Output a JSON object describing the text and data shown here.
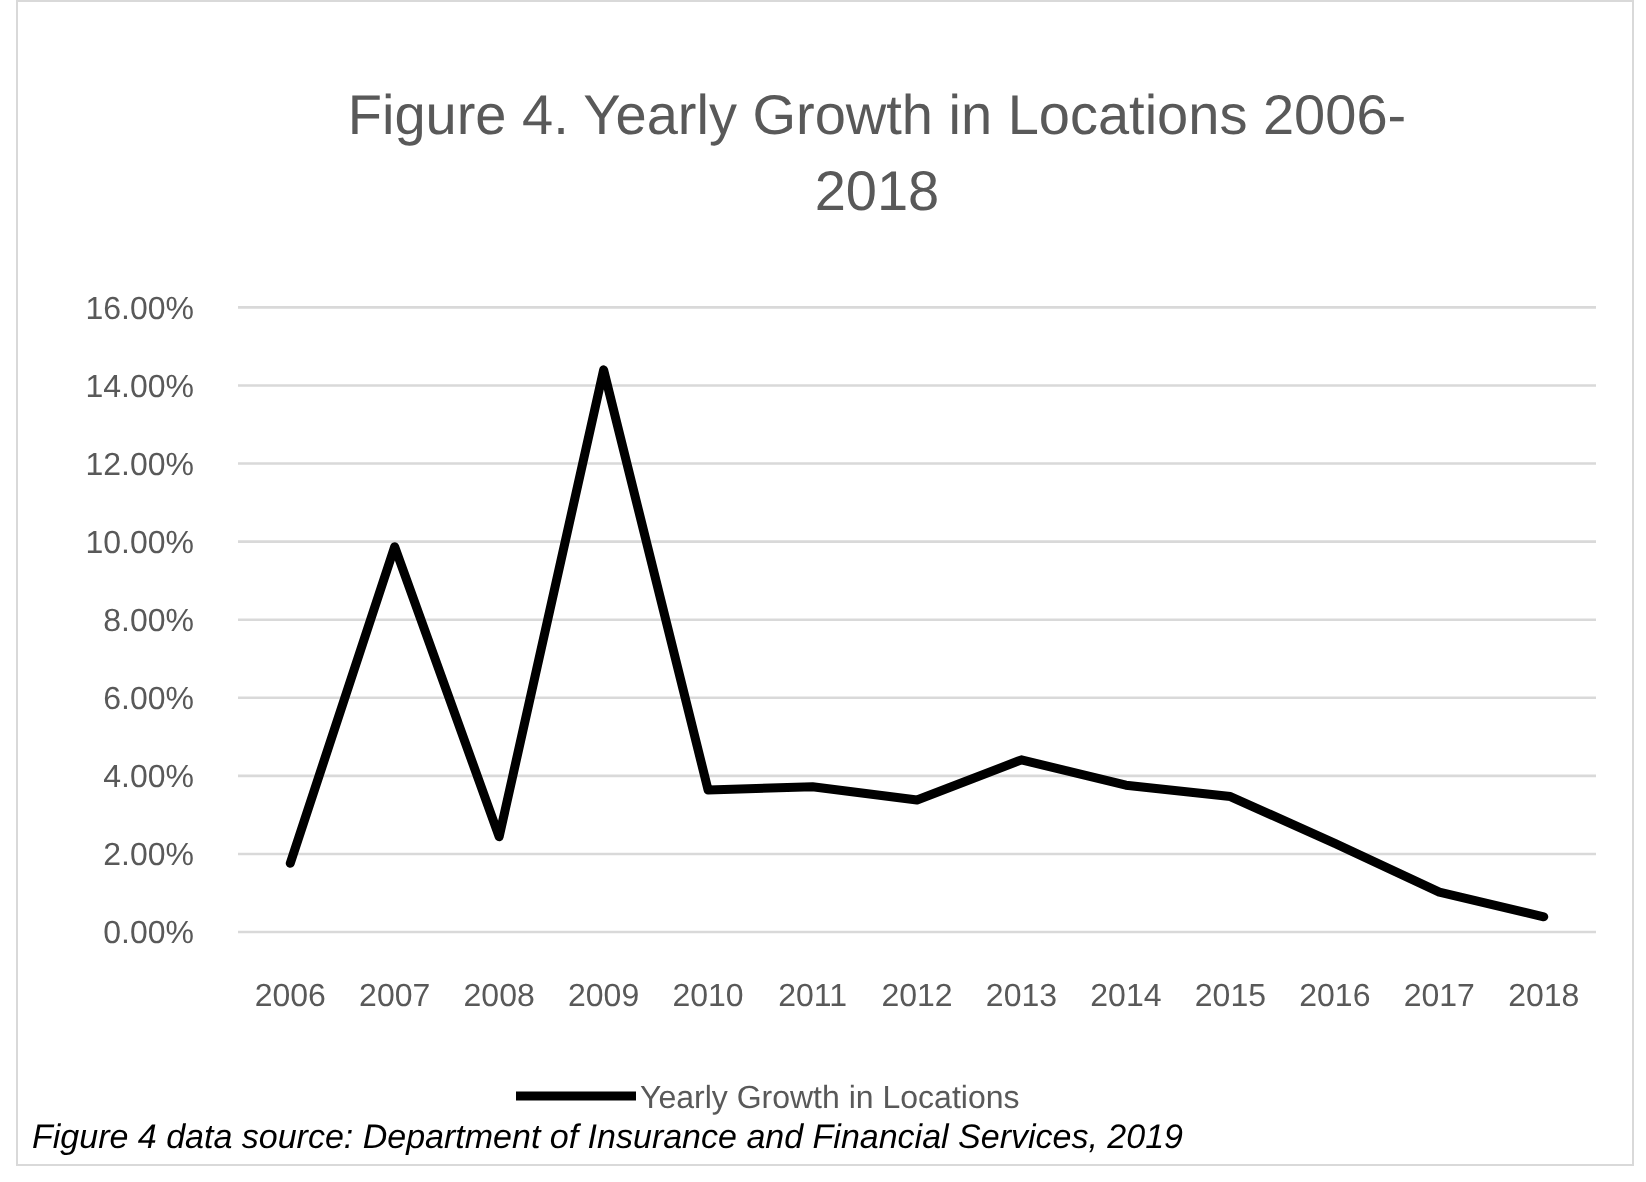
{
  "chart_data": {
    "type": "line",
    "title": "Figure 4. Yearly Growth in Locations 2006-2018",
    "categories": [
      "2006",
      "2007",
      "2008",
      "2009",
      "2010",
      "2011",
      "2012",
      "2013",
      "2014",
      "2015",
      "2016",
      "2017",
      "2018"
    ],
    "series": [
      {
        "name": "Yearly Growth in Locations",
        "color": "#000000",
        "values": [
          1.76,
          9.87,
          2.44,
          14.4,
          3.64,
          3.72,
          3.38,
          4.41,
          3.76,
          3.47,
          2.27,
          1.02,
          0.39
        ]
      }
    ],
    "ylim": [
      0,
      16
    ],
    "yticks": [
      {
        "value": 0,
        "label": "0.00%"
      },
      {
        "value": 2,
        "label": "2.00%"
      },
      {
        "value": 4,
        "label": "4.00%"
      },
      {
        "value": 6,
        "label": "6.00%"
      },
      {
        "value": 8,
        "label": "8.00%"
      },
      {
        "value": 10,
        "label": "10.00%"
      },
      {
        "value": 12,
        "label": "12.00%"
      },
      {
        "value": 14,
        "label": "14.00%"
      },
      {
        "value": 16,
        "label": "16.00%"
      }
    ],
    "grid": "y",
    "legend": "bottom",
    "marker": "none",
    "line_style": "solid",
    "annotations": [
      "Figure 4 data source: Department of Insurance and Financial Services, 2019"
    ]
  }
}
